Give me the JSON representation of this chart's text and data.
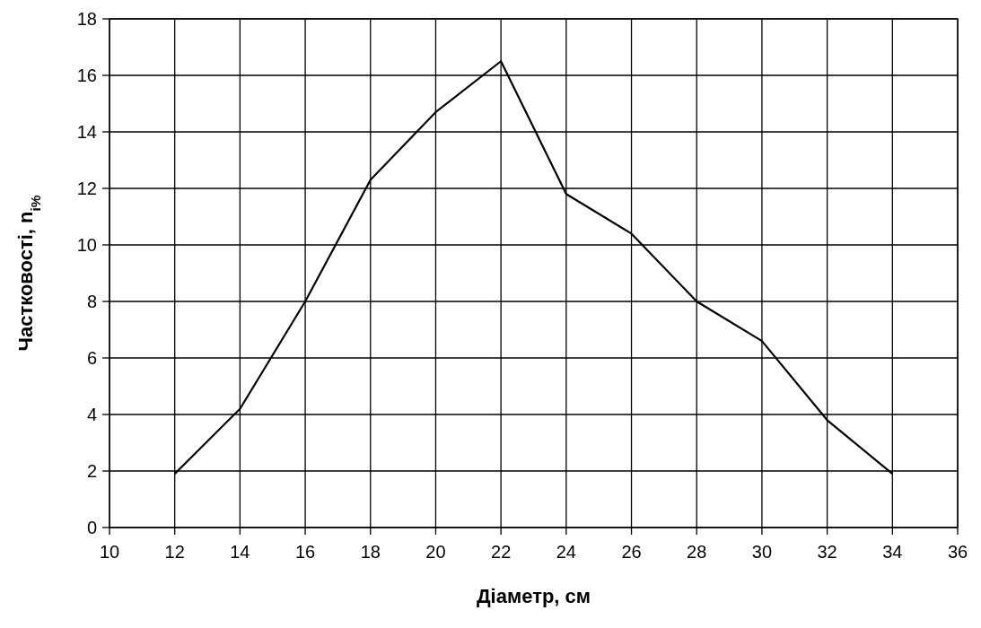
{
  "chart_data": {
    "type": "line",
    "xlabel": "Діаметр, см",
    "ylabel": "Частковості, n$_{i%}$",
    "x": [
      12,
      14,
      16,
      18,
      20,
      22,
      24,
      26,
      28,
      30,
      32,
      34
    ],
    "series": [
      {
        "color": "#000000",
        "values": [
          1.9,
          4.2,
          8.0,
          12.3,
          14.7,
          16.5,
          11.8,
          10.4,
          8.0,
          6.6,
          3.8,
          1.9
        ]
      }
    ],
    "xlim": [
      10,
      36
    ],
    "xticks": [
      10,
      12,
      14,
      16,
      18,
      20,
      22,
      24,
      26,
      28,
      30,
      32,
      34,
      36
    ],
    "ylim": [
      0,
      18
    ],
    "yticks": [
      0,
      2,
      4,
      6,
      8,
      10,
      12,
      14,
      16,
      18
    ],
    "grid": true,
    "marker": "none",
    "line_style": "solid"
  }
}
